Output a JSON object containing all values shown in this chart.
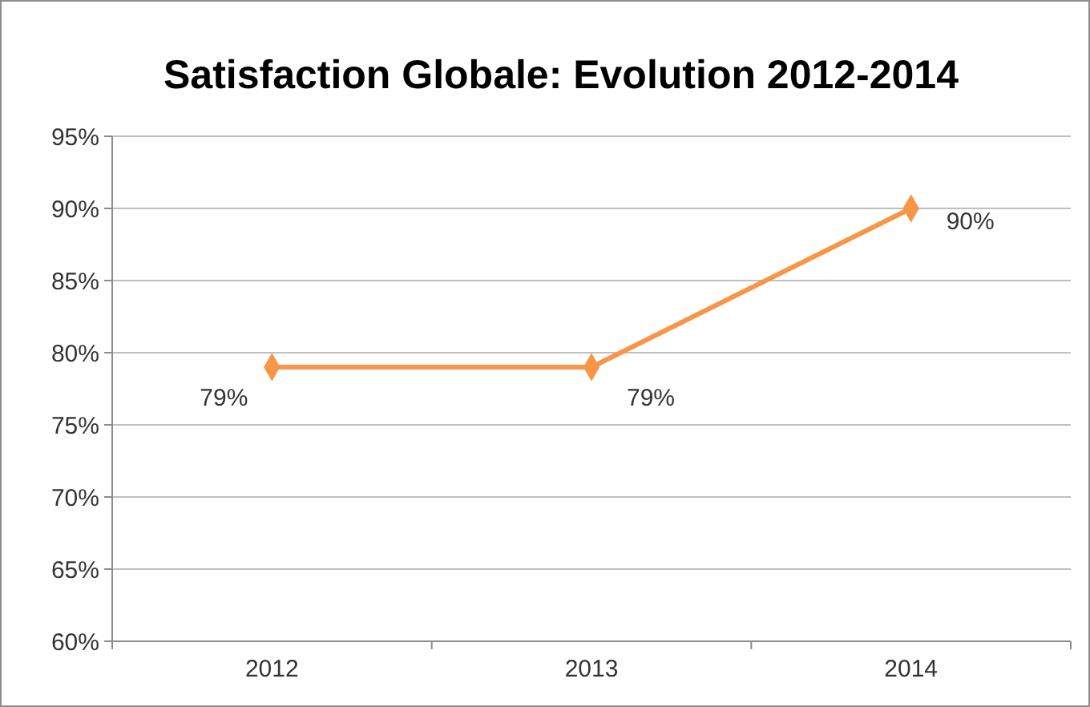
{
  "chart_data": {
    "type": "line",
    "title": "Satisfaction Globale: Evolution 2012-2014",
    "categories": [
      "2012",
      "2013",
      "2014"
    ],
    "series": [
      {
        "color": "#f79646",
        "values": [
          79,
          79,
          90
        ],
        "value_labels": [
          "79%",
          "79%",
          "90%"
        ]
      }
    ],
    "ylim": [
      60,
      95
    ],
    "yticks": [
      {
        "value": 60,
        "label": "60%"
      },
      {
        "value": 65,
        "label": "65%"
      },
      {
        "value": 70,
        "label": "70%"
      },
      {
        "value": 75,
        "label": "75%"
      },
      {
        "value": 80,
        "label": "80%"
      },
      {
        "value": 85,
        "label": "85%"
      },
      {
        "value": 90,
        "label": "90%"
      },
      {
        "value": 95,
        "label": "95%"
      }
    ],
    "grid": "y",
    "marker": "diamond",
    "line_style": "solid"
  }
}
